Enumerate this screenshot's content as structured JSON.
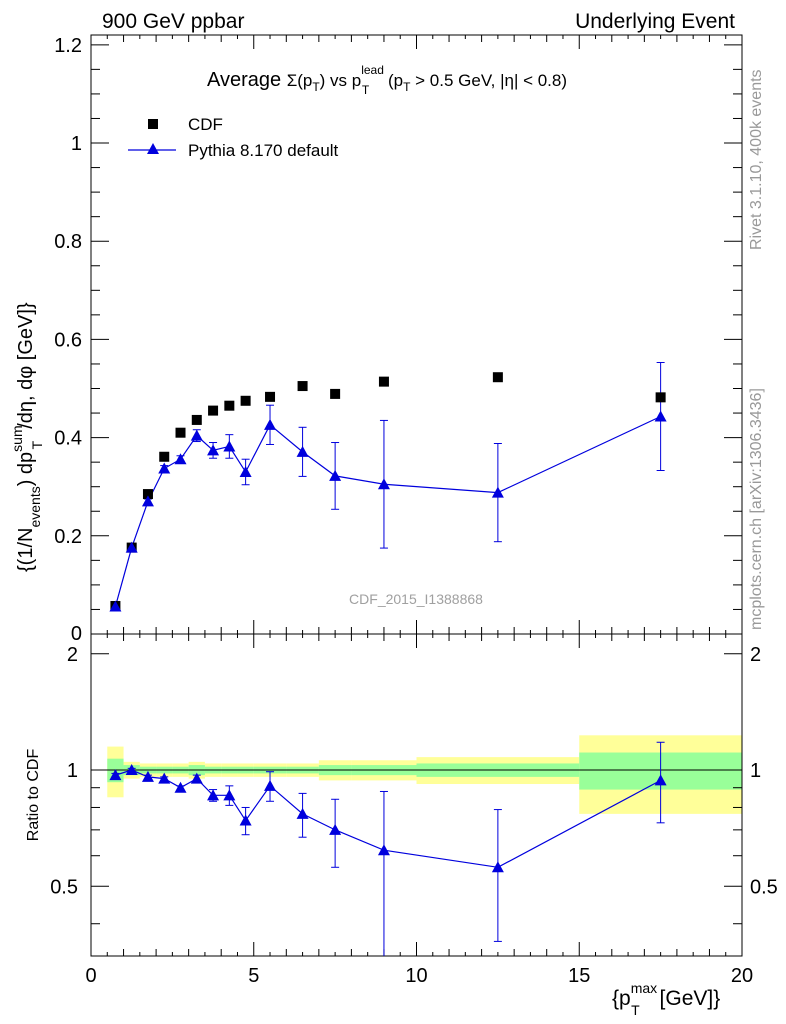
{
  "header": {
    "left": "900 GeV ppbar",
    "right": "Underlying Event"
  },
  "title": {
    "main": "Average ",
    "sigma": "Σ(p",
    "t_sub": "T",
    "vs": ") vs p",
    "lead_sup": "lead",
    "lead_sub": "T",
    "cut": " (p",
    "cut_sub": "T",
    "cut_rest": " > 0.5 GeV, |η| < 0.8)"
  },
  "side_text": {
    "rivet": "Rivet 3.1.10,  400k events",
    "mcplots": "mcplots.cern.ch [arXiv:1306.3436]"
  },
  "watermark": "CDF_2015_I1388868",
  "ylabel_top": {
    "part1": "{(1/N",
    "sub1": "events",
    "part2": ") dp",
    "sup2": "sum",
    "sub2": "T",
    "part3": "/dη, dφ [GeV]}"
  },
  "ylabel_bottom": "Ratio to CDF",
  "xlabel": {
    "part1": "{p",
    "sup": "max",
    "sub": "T",
    "part2": " [GeV]}"
  },
  "legend": {
    "position": "top-left",
    "entries": [
      "CDF",
      "Pythia 8.170 default"
    ]
  },
  "colors": {
    "data": "#000000",
    "mc": "#0000dd",
    "band_inner": "#99ff99",
    "band_outer": "#ffff99"
  },
  "chart_data": [
    {
      "type": "scatter",
      "panel": "main",
      "xlim": [
        0,
        20
      ],
      "ylim": [
        0,
        1.22
      ],
      "yticks": [
        0.2,
        0.4,
        0.6,
        0.8,
        1,
        1.2
      ],
      "ytick_labels": [
        "0.2",
        "0.4",
        "0.6",
        "0.8",
        "1",
        "1.2"
      ],
      "ytick_zero_label": "0",
      "series": [
        {
          "name": "CDF",
          "marker": "square",
          "x": [
            0.75,
            1.25,
            1.75,
            2.25,
            2.75,
            3.25,
            3.75,
            4.25,
            4.75,
            5.5,
            6.5,
            7.5,
            9.0,
            12.5,
            17.5
          ],
          "y": [
            0.057,
            0.176,
            0.285,
            0.361,
            0.41,
            0.436,
            0.455,
            0.465,
            0.475,
            0.483,
            0.505,
            0.489,
            0.514,
            0.523,
            0.482
          ]
        },
        {
          "name": "Pythia 8.170 default",
          "marker": "triangle",
          "x": [
            0.75,
            1.25,
            1.75,
            2.25,
            2.75,
            3.25,
            3.75,
            4.25,
            4.75,
            5.5,
            6.5,
            7.5,
            9.0,
            12.5,
            17.5
          ],
          "y": [
            0.056,
            0.176,
            0.27,
            0.337,
            0.356,
            0.404,
            0.374,
            0.382,
            0.33,
            0.426,
            0.371,
            0.322,
            0.305,
            0.288,
            0.443
          ],
          "yerr": [
            0.002,
            0.003,
            0.005,
            0.006,
            0.007,
            0.012,
            0.016,
            0.024,
            0.026,
            0.04,
            0.05,
            0.068,
            0.13,
            0.1,
            0.11
          ]
        }
      ]
    },
    {
      "type": "line",
      "panel": "ratio",
      "xlim": [
        0,
        20
      ],
      "ylim": [
        0.33,
        2.25
      ],
      "scale": "log",
      "yticks": [
        0.5,
        1,
        2
      ],
      "ytick_labels": [
        "0.5",
        "1",
        "2"
      ],
      "xticks": [
        0,
        5,
        10,
        15,
        20
      ],
      "xtick_labels": [
        "0",
        "5",
        "10",
        "15",
        "20"
      ],
      "bands": {
        "edges": [
          0.5,
          1.0,
          1.5,
          2.0,
          2.5,
          3.0,
          3.5,
          4.0,
          4.5,
          5.0,
          6.0,
          7.0,
          8.0,
          10.0,
          15.0,
          20.0
        ],
        "inner_lo": [
          0.93,
          0.97,
          0.98,
          0.98,
          0.98,
          0.97,
          0.98,
          0.98,
          0.98,
          0.98,
          0.98,
          0.97,
          0.97,
          0.96,
          0.89
        ],
        "inner_hi": [
          1.07,
          1.03,
          1.02,
          1.02,
          1.02,
          1.03,
          1.02,
          1.02,
          1.02,
          1.02,
          1.02,
          1.03,
          1.03,
          1.04,
          1.11
        ],
        "outer_lo": [
          0.85,
          0.95,
          0.96,
          0.96,
          0.96,
          0.95,
          0.96,
          0.96,
          0.96,
          0.96,
          0.96,
          0.94,
          0.94,
          0.92,
          0.77
        ],
        "outer_hi": [
          1.15,
          1.05,
          1.04,
          1.04,
          1.04,
          1.05,
          1.04,
          1.04,
          1.04,
          1.04,
          1.04,
          1.06,
          1.06,
          1.08,
          1.23
        ]
      },
      "series": [
        {
          "name": "Pythia 8.170 default",
          "x": [
            0.75,
            1.25,
            1.75,
            2.25,
            2.75,
            3.25,
            3.75,
            4.25,
            4.75,
            5.5,
            6.5,
            7.5,
            9.0,
            12.5,
            17.5
          ],
          "y": [
            0.97,
            1.0,
            0.96,
            0.95,
            0.9,
            0.95,
            0.86,
            0.86,
            0.74,
            0.91,
            0.77,
            0.7,
            0.62,
            0.56,
            0.94
          ],
          "ylo": [
            0.96,
            0.99,
            0.95,
            0.94,
            0.89,
            0.93,
            0.83,
            0.81,
            0.68,
            0.83,
            0.67,
            0.56,
            0.33,
            0.36,
            0.73
          ],
          "yhi": [
            0.98,
            1.01,
            0.97,
            0.96,
            0.91,
            0.97,
            0.89,
            0.91,
            0.8,
            0.99,
            0.87,
            0.84,
            0.88,
            0.79,
            1.18
          ]
        }
      ]
    }
  ]
}
